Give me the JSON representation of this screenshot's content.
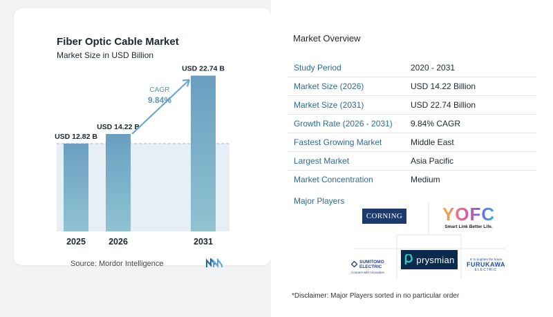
{
  "chart_card": {
    "title": "Fiber Optic Cable Market",
    "subtitle": "Market Size in USD Billion",
    "source": "Source:  Mordor Intelligence"
  },
  "chart_data": {
    "type": "bar",
    "title": "Fiber Optic Cable Market",
    "subtitle": "Market Size in USD Billion",
    "categories": [
      "2025",
      "2026",
      "2031"
    ],
    "values": [
      12.82,
      14.22,
      22.74
    ],
    "value_labels": [
      "USD 12.82 B",
      "USD 14.22 B",
      "USD 22.74 B"
    ],
    "cagr_label": "CAGR",
    "cagr_value": "9.84%",
    "ylim": [
      0,
      24
    ],
    "grid": false,
    "colors": {
      "bar_top": "#6a9ec0",
      "bar_bottom": "#8fc3d1",
      "area": "#e6eff6",
      "arrow": "#6ea8c9",
      "cagr_text": "#5b94b8"
    }
  },
  "overview": {
    "title": "Market Overview",
    "rows": [
      {
        "label": "Study Period",
        "value": "2020 - 2031"
      },
      {
        "label": "Market Size (2026)",
        "value": "USD 14.22 Billion"
      },
      {
        "label": "Market Size (2031)",
        "value": "USD 22.74 Billion"
      },
      {
        "label": "Growth Rate (2026 - 2031)",
        "value": "9.84% CAGR"
      },
      {
        "label": "Fastest Growing Market",
        "value": "Middle East"
      },
      {
        "label": "Largest Market",
        "value": "Asia Pacific"
      },
      {
        "label": "Market Concentration",
        "value": "Medium"
      }
    ],
    "players_label": "Major Players",
    "players": {
      "corning": "CORNING",
      "yofc": "YOFC",
      "yofc_tagline": "Smart Link Better Life.",
      "sumitomo_line1": "SUMITOMO",
      "sumitomo_line2": "ELECTRIC",
      "sumitomo_tagline": "Connect with Innovation",
      "prysmian": "prysmian",
      "furukawa_tagline": "In to brighten the future",
      "furukawa": "FURUKAWA",
      "furukawa_sub": "ELECTRIC"
    },
    "disclaimer": "*Disclaimer: Major Players sorted in no particular order"
  }
}
